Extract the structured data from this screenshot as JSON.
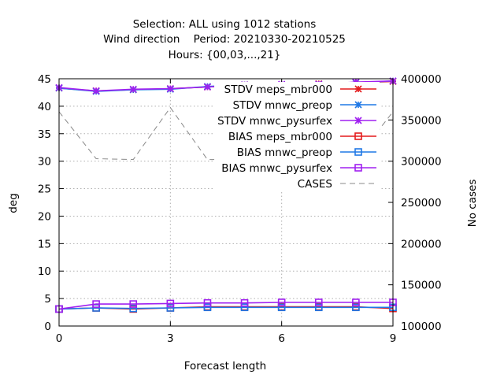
{
  "chart_data": {
    "type": "line",
    "title_lines": [
      "Selection: ALL using  1012 stations",
      "Wind direction    Period: 20210330-20210525",
      "Hours: {00,03,...,21}"
    ],
    "xlabel": "Forecast length",
    "ylabel": "deg",
    "y2label": "No cases",
    "xlim": [
      0,
      9
    ],
    "ylim": [
      0,
      45
    ],
    "y2lim": [
      100000,
      400000
    ],
    "x_ticks": [
      0,
      3,
      6,
      9
    ],
    "y_ticks": [
      0,
      5,
      10,
      15,
      20,
      25,
      30,
      35,
      40,
      45
    ],
    "y2_ticks": [
      100000,
      150000,
      200000,
      250000,
      300000,
      350000,
      400000
    ],
    "grid": true,
    "legend_position": "top-right",
    "x": [
      0,
      1,
      2,
      3,
      4,
      5,
      6,
      7,
      8,
      9
    ],
    "series": [
      {
        "name": "STDV meps_mbr000",
        "axis": "y1",
        "color": "#e41a1c",
        "marker": "asterisk",
        "values": [
          43.3,
          42.8,
          43.0,
          43.2,
          43.5,
          43.9,
          43.9,
          44.1,
          44.3,
          44.5
        ]
      },
      {
        "name": "STDV mnwc_preop",
        "axis": "y1",
        "color": "#1f78e6",
        "marker": "asterisk",
        "values": [
          43.3,
          42.7,
          43.0,
          43.1,
          43.6,
          43.9,
          43.9,
          44.0,
          44.3,
          44.6
        ]
      },
      {
        "name": "STDV mnwc_pysurfex",
        "axis": "y1",
        "color": "#a020f0",
        "marker": "asterisk",
        "values": [
          43.4,
          42.8,
          43.1,
          43.2,
          43.5,
          43.9,
          44.0,
          44.0,
          44.4,
          44.6
        ]
      },
      {
        "name": "BIAS meps_mbr000",
        "axis": "y1",
        "color": "#e41a1c",
        "marker": "square",
        "values": [
          3.1,
          3.3,
          3.1,
          3.3,
          3.5,
          3.5,
          3.5,
          3.5,
          3.5,
          3.2
        ]
      },
      {
        "name": "BIAS mnwc_preop",
        "axis": "y1",
        "color": "#1f78e6",
        "marker": "square",
        "values": [
          3.1,
          3.3,
          3.2,
          3.3,
          3.4,
          3.4,
          3.4,
          3.4,
          3.4,
          3.4
        ]
      },
      {
        "name": "BIAS mnwc_pysurfex",
        "axis": "y1",
        "color": "#a020f0",
        "marker": "square",
        "values": [
          3.1,
          4.0,
          4.0,
          4.1,
          4.2,
          4.2,
          4.3,
          4.3,
          4.3,
          4.3
        ]
      },
      {
        "name": "CASES",
        "axis": "y2",
        "color": "#888888",
        "marker": "none",
        "dash": true,
        "values": [
          360000,
          303000,
          302000,
          365000,
          302000,
          302000,
          302000,
          302000,
          302000,
          360000
        ]
      }
    ]
  }
}
